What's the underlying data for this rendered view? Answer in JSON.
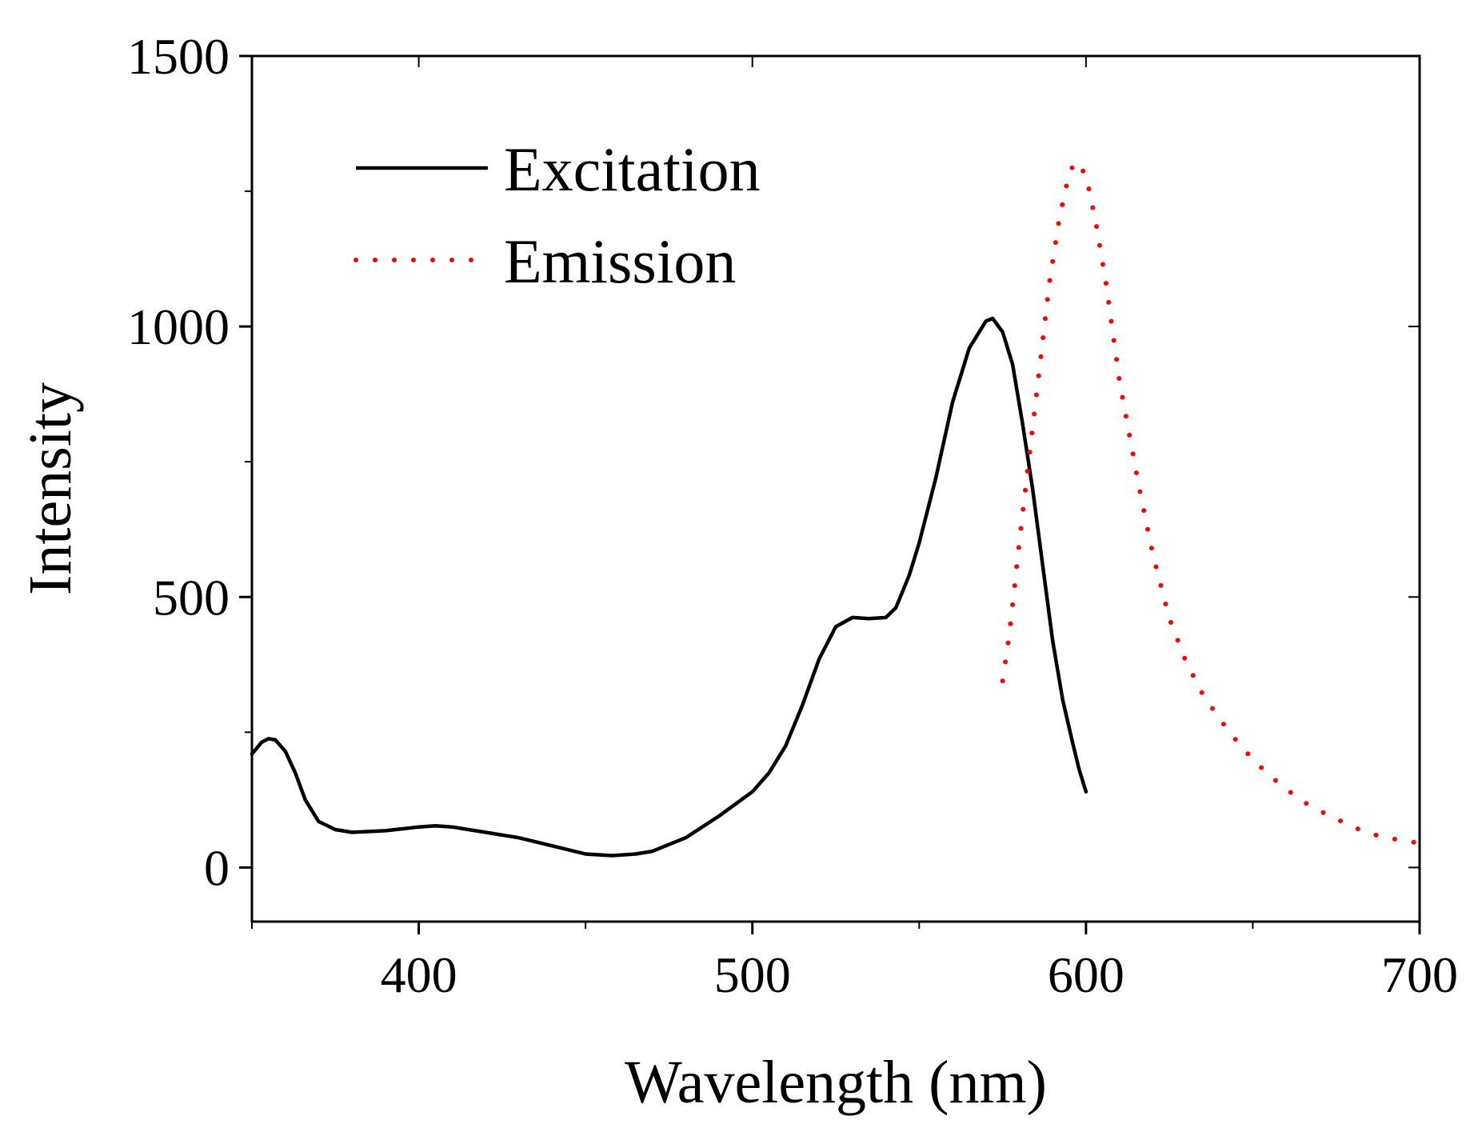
{
  "chart_data": {
    "type": "line",
    "title": "",
    "xlabel": "Wavelength (nm)",
    "ylabel": "Intensity",
    "xlim": [
      350,
      700
    ],
    "ylim": [
      -100,
      1500
    ],
    "x_ticks": [
      400,
      500,
      600,
      700
    ],
    "x_tick_labels": [
      "400",
      "500",
      "600",
      "700"
    ],
    "x_minor_ticks": [
      350,
      450,
      550,
      650
    ],
    "y_ticks": [
      0,
      500,
      1000,
      1500
    ],
    "y_tick_labels": [
      "0",
      "500",
      "1000",
      "1500"
    ],
    "y_minor_ticks": [
      250,
      750,
      1250
    ],
    "grid": false,
    "legend_position": "top-left",
    "series": [
      {
        "name": "Excitation",
        "style": "solid",
        "color": "#000000",
        "x": [
          350,
          353,
          355,
          357,
          360,
          363,
          366,
          370,
          375,
          380,
          390,
          400,
          405,
          410,
          420,
          430,
          440,
          450,
          458,
          465,
          470,
          480,
          490,
          500,
          505,
          510,
          515,
          520,
          525,
          530,
          535,
          540,
          543,
          547,
          550,
          555,
          560,
          565,
          570,
          572,
          575,
          578,
          581,
          584,
          587,
          590,
          593,
          596,
          598,
          600
        ],
        "y": [
          210,
          232,
          238,
          236,
          215,
          175,
          125,
          85,
          70,
          65,
          68,
          75,
          77,
          75,
          65,
          55,
          40,
          25,
          22,
          25,
          30,
          55,
          95,
          140,
          175,
          225,
          300,
          385,
          445,
          462,
          460,
          462,
          480,
          540,
          600,
          720,
          860,
          960,
          1010,
          1015,
          990,
          930,
          820,
          700,
          560,
          420,
          310,
          230,
          180,
          140
        ]
      },
      {
        "name": "Emission",
        "style": "dotted",
        "color": "#ff0000",
        "x": [
          575,
          577,
          580,
          583,
          586,
          589,
          592,
          595,
          597,
          600,
          603,
          606,
          610,
          613,
          616,
          620,
          625,
          630,
          635,
          640,
          645,
          650,
          655,
          660,
          665,
          670,
          675,
          680,
          685,
          690,
          695,
          700
        ],
        "y": [
          345,
          430,
          600,
          760,
          920,
          1080,
          1200,
          1285,
          1305,
          1280,
          1190,
          1080,
          900,
          800,
          700,
          580,
          460,
          380,
          320,
          275,
          235,
          200,
          170,
          145,
          122,
          105,
          90,
          75,
          63,
          55,
          50,
          45
        ]
      }
    ]
  }
}
